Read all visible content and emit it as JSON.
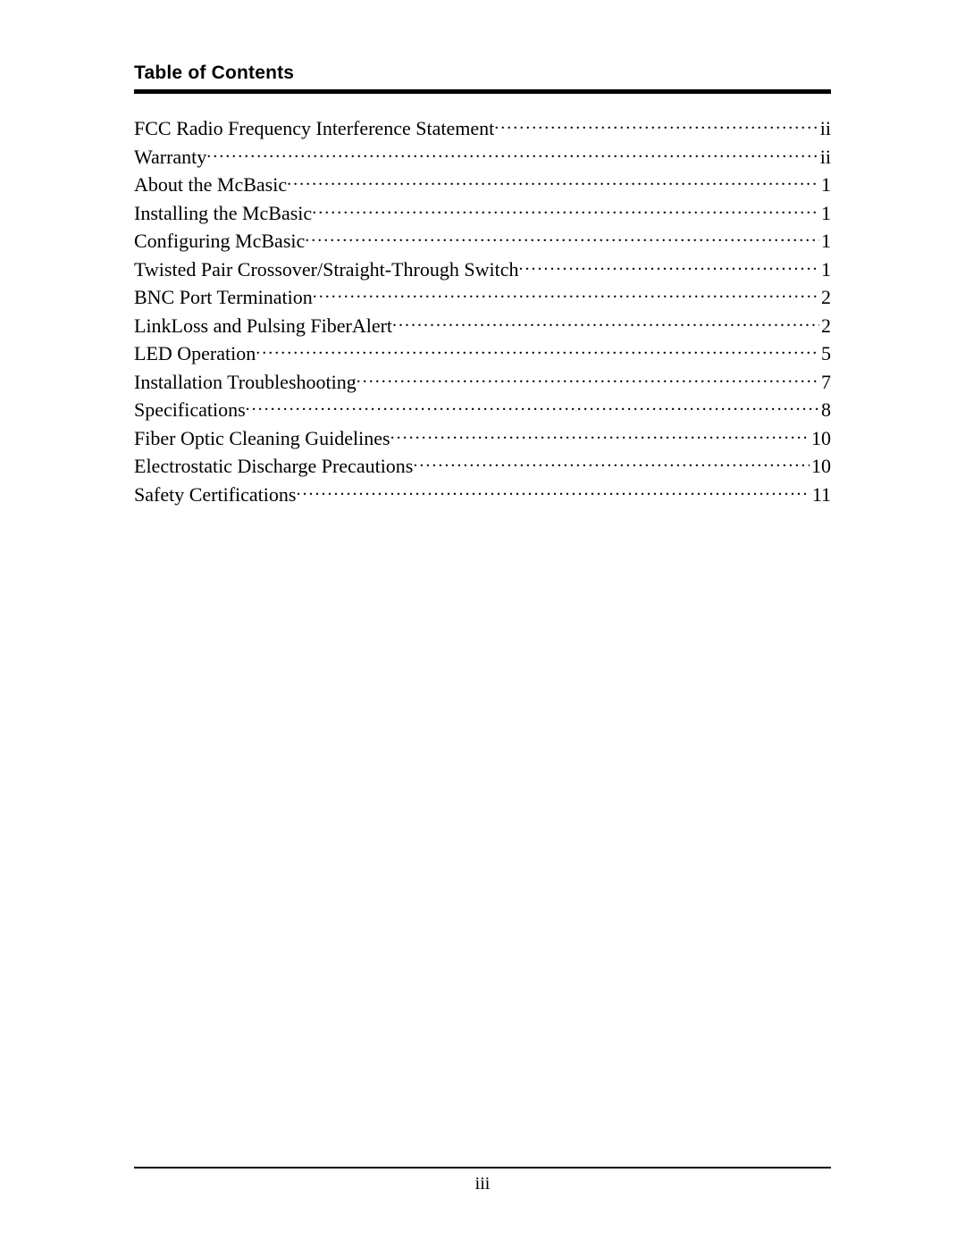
{
  "heading": "Table of Contents",
  "page_number": "iii",
  "colors": {
    "text": "#000000",
    "background": "#ffffff",
    "rule": "#000000"
  },
  "typography": {
    "heading_font": "Arial",
    "heading_weight": 900,
    "heading_size_pt": 16,
    "body_font": "Garamond",
    "body_size_pt": 16
  },
  "entries": [
    {
      "title": "FCC Radio Frequency Interference Statement",
      "page": "ii"
    },
    {
      "title": "Warranty",
      "page": "ii"
    },
    {
      "title": "About the McBasic",
      "page": "1"
    },
    {
      "title": "Installing the McBasic",
      "page": "1"
    },
    {
      "title": "Configuring McBasic",
      "page": "1"
    },
    {
      "title": "Twisted Pair Crossover/Straight-Through Switch",
      "page": "1"
    },
    {
      "title": "BNC Port Termination",
      "page": "2"
    },
    {
      "title": "LinkLoss and Pulsing FiberAlert",
      "page": "2"
    },
    {
      "title": "LED Operation",
      "page": "5"
    },
    {
      "title": "Installation Troubleshooting",
      "page": "7"
    },
    {
      "title": "Specifications",
      "page": "8"
    },
    {
      "title": "Fiber Optic Cleaning Guidelines",
      "page": "10"
    },
    {
      "title": "Electrostatic Discharge Precautions",
      "page": "10"
    },
    {
      "title": "Safety Certifications",
      "page": "11"
    }
  ]
}
